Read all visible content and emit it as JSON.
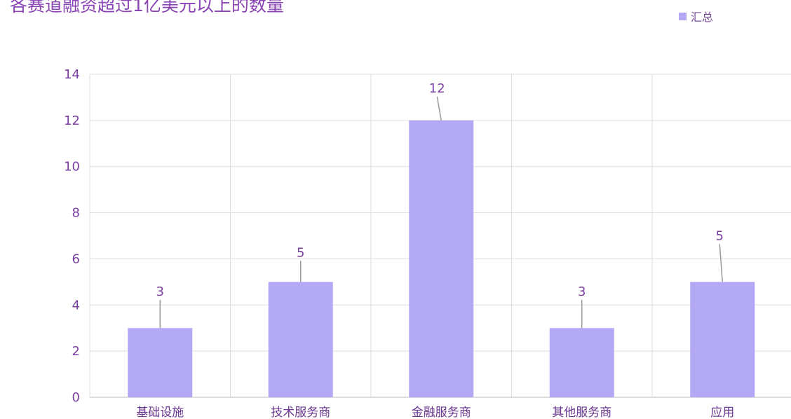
{
  "chart_data": {
    "type": "bar",
    "title": "各赛道融资超过1亿美元以上的数量",
    "categories": [
      "基础设施",
      "技术服务商",
      "金融服务商",
      "其他服务商",
      "应用"
    ],
    "series": [
      {
        "name": "汇总",
        "values": [
          3,
          5,
          12,
          3,
          5
        ]
      }
    ],
    "ylim": [
      0,
      14
    ],
    "yticks": [
      0,
      2,
      4,
      6,
      8,
      10,
      12,
      14
    ],
    "grid": true,
    "legend": "top-right",
    "data_labels": true,
    "colors": {
      "bar": "#b3a8f3",
      "text": "#7a3fa0",
      "grid": "#dddddd"
    }
  }
}
